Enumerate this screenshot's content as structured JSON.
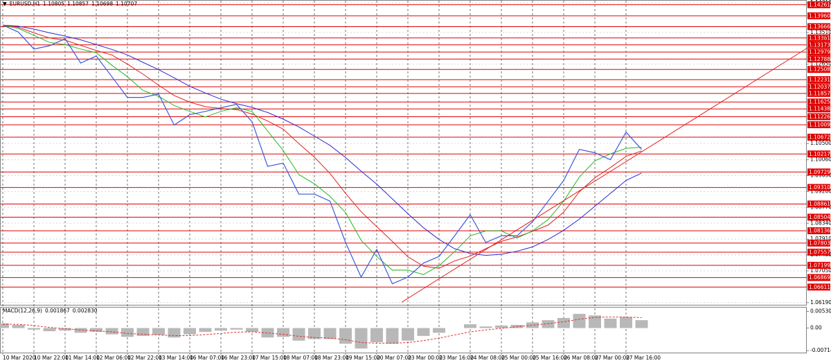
{
  "chart_data": [
    {
      "type": "line",
      "title": "EURUSD,H1",
      "ohlc": [
        1.10805,
        1.10857,
        1.10698,
        1.10707
      ],
      "categories": [
        "10 Mar 2020",
        null,
        "10 Mar 22:00",
        null,
        "11 Mar 14:00",
        null,
        "12 Mar 06:00",
        null,
        "12 Mar 22:00",
        null,
        "13 Mar 14:00",
        null,
        "16 Mar 07:00",
        null,
        "16 Mar 23:00",
        null,
        "17 Mar 15:00",
        null,
        "18 Mar 07:00",
        null,
        "18 Mar 23:00",
        null,
        "19 Mar 15:00",
        null,
        "20 Mar 07:00",
        null,
        "23 Mar 00:00",
        null,
        "23 Mar 16:00",
        null,
        "24 Mar 08:00",
        null,
        "25 Mar 00:00",
        null,
        "25 Mar 16:00",
        null,
        "26 Mar 08:00",
        null,
        "27 Mar 00:00",
        null,
        "27 Mar 16:00",
        null
      ],
      "series": [
        {
          "color": "#3a5bd9",
          "values": [
            1.1371,
            1.1352,
            1.1306,
            1.1315,
            1.1334,
            1.1268,
            1.1287,
            1.1231,
            1.1175,
            1.1175,
            1.1184,
            1.11,
            1.1128,
            1.1137,
            1.1147,
            1.1156,
            1.1109,
            1.0988,
            1.0997,
            1.0913,
            1.0913,
            1.0894,
            1.0782,
            1.0688,
            1.0763,
            1.067,
            1.0688,
            1.0726,
            1.0744,
            1.08,
            1.0857,
            1.0782,
            1.08,
            1.08,
            1.0838,
            1.0894,
            1.095,
            1.1034,
            1.1025,
            1.1006,
            1.1081,
            1.1034
          ]
        },
        {
          "color": "#22b822",
          "values": [
            1.1371,
            1.1362,
            1.1343,
            1.1324,
            1.1318,
            1.1306,
            1.1296,
            1.1262,
            1.1231,
            1.1194,
            1.1178,
            1.1153,
            1.1137,
            1.1122,
            1.1137,
            1.1147,
            1.1137,
            1.1084,
            1.1031,
            1.0966,
            1.0941,
            1.0907,
            1.0863,
            1.0788,
            1.0744,
            1.0707,
            1.0707,
            1.0695,
            1.0719,
            1.0757,
            1.08,
            1.0813,
            1.0813,
            1.0794,
            1.0813,
            1.0844,
            1.0894,
            1.0959,
            1.1003,
            1.1022,
            1.1037,
            1.104
          ]
        },
        {
          "color": "#e02020",
          "values": [
            1.1371,
            1.1365,
            1.135,
            1.1336,
            1.133,
            1.1316,
            1.1302,
            1.129,
            1.1265,
            1.1238,
            1.1208,
            1.118,
            1.1162,
            1.115,
            1.1145,
            1.1142,
            1.113,
            1.1111,
            1.1089,
            1.105,
            1.1013,
            1.0969,
            1.0915,
            1.0865,
            1.0825,
            1.0785,
            1.0743,
            1.0718,
            1.0712,
            1.0732,
            1.0745,
            1.0765,
            1.0785,
            1.0797,
            1.0812,
            1.0829,
            1.0864,
            1.0919,
            1.0957,
            1.0985,
            1.1015,
            1.103
          ]
        },
        {
          "color": "#2a2ad0",
          "values": [
            1.1371,
            1.1368,
            1.136,
            1.135,
            1.1341,
            1.1331,
            1.1318,
            1.1305,
            1.129,
            1.127,
            1.125,
            1.1228,
            1.1205,
            1.1187,
            1.117,
            1.1158,
            1.1148,
            1.1134,
            1.1116,
            1.1095,
            1.107,
            1.1045,
            1.1012,
            1.0975,
            1.094,
            1.09,
            1.086,
            1.0822,
            1.079,
            1.0765,
            1.0752,
            1.0747,
            1.075,
            1.0758,
            1.077,
            1.079,
            1.0815,
            1.0845,
            1.088,
            1.0915,
            1.095,
            1.097
          ]
        }
      ],
      "ylim": [
        1.0613,
        1.1437
      ],
      "yticks": [
        {
          "value": 1.1431,
          "label": "1.14310"
        },
        {
          "value": 1.1351,
          "label": "1.13510"
        },
        {
          "value": 1.1265,
          "label": "1.12650"
        },
        {
          "value": 1.105,
          "label": "1.10500"
        },
        {
          "value": 1.1006,
          "label": "1.10060"
        },
        {
          "value": 1.0963,
          "label": "1.09630"
        },
        {
          "value": 1.092,
          "label": "1.09200"
        },
        {
          "value": 1.0877,
          "label": "1.08770"
        },
        {
          "value": 1.0834,
          "label": "1.08340"
        },
        {
          "value": 1.0791,
          "label": "1.07910"
        },
        {
          "value": 1.0748,
          "label": "1.07480"
        },
        {
          "value": 1.0705,
          "label": "1.07050"
        },
        {
          "value": 1.0619,
          "label": "1.06190"
        }
      ],
      "grid": true,
      "levels": {
        "color": "#e00000",
        "values": [
          1.14261,
          1.1396,
          1.13666,
          1.13361,
          1.13173,
          1.12979,
          1.12788,
          1.12508,
          1.12231,
          1.12037,
          1.11857,
          1.11625,
          1.11438,
          1.11226,
          1.11009,
          1.10672,
          1.10217,
          1.09729,
          1.0931,
          1.08861,
          1.08504,
          1.08136,
          1.07803,
          1.07557,
          1.07199,
          1.06869,
          1.06611
        ],
        "value_labels": [
          "1.14261",
          "1.13960",
          "1.13666",
          "1.13361",
          "1.13173",
          "1.12979",
          "1.12788",
          "1.12508",
          "1.12231",
          "1.12037",
          "1.11857",
          "1.11625",
          "1.11438",
          "1.11226",
          "1.11009",
          "1.10672",
          "1.10217",
          "1.09729",
          "1.09310",
          "1.08861",
          "1.08504",
          "1.08136",
          "1.07803",
          "1.07557",
          "1.07199",
          "1.06869",
          "1.06611"
        ]
      },
      "trendline": {
        "color": "#e02020",
        "values": [
          1.062,
          1.1349
        ]
      }
    },
    {
      "type": "bar",
      "title": "MACD(12,26,9)",
      "readings": [
        {
          "value": 0.001867,
          "label": "0.001867"
        },
        {
          "value": 0.00283,
          "label": "0.002830"
        }
      ],
      "color": "#b8b8b8",
      "values": [
        0.0015,
        0.001,
        -0.0005,
        -0.001,
        -0.0008,
        -0.0015,
        -0.0012,
        -0.002,
        -0.0028,
        -0.0025,
        -0.0022,
        -0.003,
        -0.002,
        -0.0012,
        -0.0008,
        -0.0005,
        -0.0012,
        -0.003,
        -0.0028,
        -0.004,
        -0.0035,
        -0.0035,
        -0.005,
        -0.0065,
        -0.0045,
        -0.005,
        -0.004,
        -0.0025,
        -0.0015,
        0.0,
        0.0012,
        0.0005,
        0.0008,
        0.001,
        0.0018,
        0.0025,
        0.0032,
        0.0045,
        0.004,
        0.003,
        0.0035,
        0.0025
      ],
      "series": [
        {
          "color": "#e03030",
          "values": [
            0.0012,
            0.0012,
            0.0008,
            0.0002,
            -0.0002,
            -0.0006,
            -0.0009,
            -0.0012,
            -0.0017,
            -0.002,
            -0.0022,
            -0.0024,
            -0.0024,
            -0.0021,
            -0.0017,
            -0.0013,
            -0.0012,
            -0.0016,
            -0.002,
            -0.0026,
            -0.003,
            -0.0032,
            -0.0037,
            -0.0046,
            -0.0048,
            -0.0048,
            -0.0046,
            -0.004,
            -0.0032,
            -0.0022,
            -0.0012,
            -0.0006,
            -0.0001,
            0.0004,
            0.0009,
            0.0014,
            0.002,
            0.0028,
            0.0034,
            0.0035,
            0.0035,
            0.0033
          ]
        }
      ],
      "ylim": [
        -0.0078,
        0.0065
      ],
      "yticks": [
        0.005305,
        {
          "value": 0,
          "label": "0.00"
        },
        -0.007148
      ]
    }
  ]
}
